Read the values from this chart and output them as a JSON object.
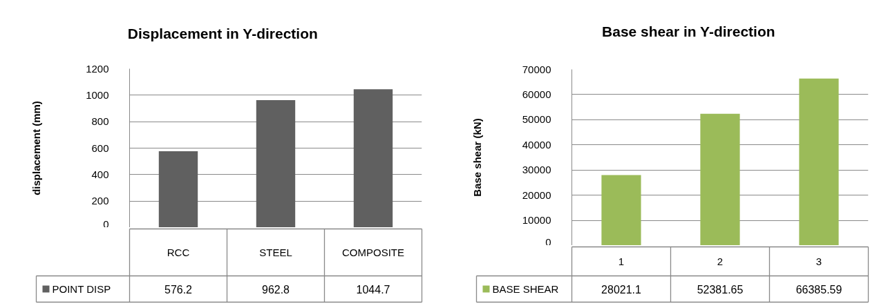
{
  "chart_data": [
    {
      "type": "bar",
      "title": "Displacement in Y-direction",
      "ylabel": "displacement (mm)",
      "categories": [
        "RCC",
        "STEEL",
        "COMPOSITE"
      ],
      "series": [
        {
          "name": "POINT DISP",
          "color": "#606060",
          "values": [
            576.2,
            962.8,
            1044.7
          ]
        }
      ],
      "ylim": [
        0,
        1200
      ],
      "yticks": [
        0,
        200,
        400,
        600,
        800,
        1000,
        1200
      ],
      "grid": "y",
      "legend": "bottom left",
      "data_labels": true
    },
    {
      "type": "bar",
      "title": "Base shear in Y-direction",
      "ylabel": "Base shear (kN)",
      "categories": [
        "1",
        "2",
        "3"
      ],
      "series": [
        {
          "name": "BASE SHEAR",
          "color": "#9bbb59",
          "values": [
            28021.1,
            52381.65,
            66385.59
          ]
        }
      ],
      "ylim": [
        0,
        70000
      ],
      "yticks": [
        0,
        10000,
        20000,
        30000,
        40000,
        50000,
        60000,
        70000
      ],
      "grid": "y",
      "legend": "bottom left",
      "data_labels": true
    }
  ]
}
